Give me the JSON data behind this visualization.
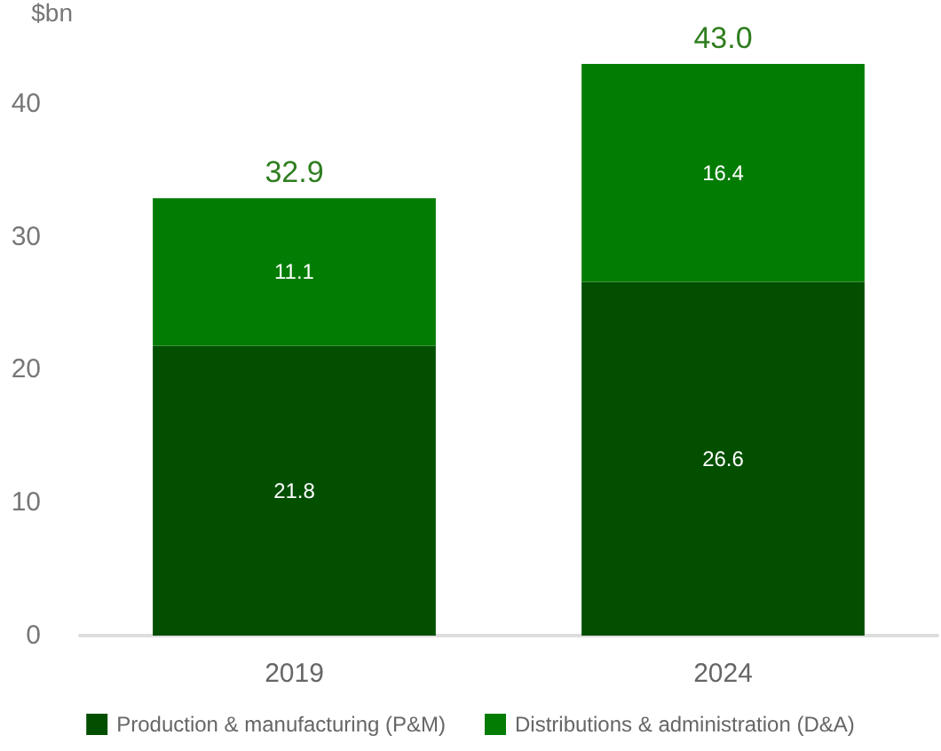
{
  "chart_data": {
    "type": "bar",
    "stacked": true,
    "ylabel": "$bn",
    "categories": [
      "2019",
      "2024"
    ],
    "series": [
      {
        "name": "Production & manufacturing (P&M)",
        "color": "#024f00",
        "values": [
          21.8,
          26.6
        ]
      },
      {
        "name": "Distributions & administration (D&A)",
        "color": "#037c03",
        "values": [
          11.1,
          16.4
        ]
      }
    ],
    "totals": [
      "32.9",
      "43.0"
    ],
    "data_labels": true,
    "ylim": [
      0,
      43
    ],
    "yticks": [
      0,
      10,
      20,
      30,
      40
    ],
    "grid": false,
    "legend": "bottom"
  }
}
